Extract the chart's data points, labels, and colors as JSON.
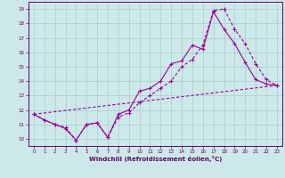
{
  "xlabel": "Windchill (Refroidissement éolien,°C)",
  "background_color": "#cce8e8",
  "grid_color": "#aacccc",
  "line_color": "#990099",
  "xlim": [
    -0.5,
    23.5
  ],
  "ylim": [
    9.5,
    19.5
  ],
  "xticks": [
    0,
    1,
    2,
    3,
    4,
    5,
    6,
    7,
    8,
    9,
    10,
    11,
    12,
    13,
    14,
    15,
    16,
    17,
    18,
    19,
    20,
    21,
    22,
    23
  ],
  "yticks": [
    10,
    11,
    12,
    13,
    14,
    15,
    16,
    17,
    18,
    19
  ],
  "series1_x": [
    0,
    1,
    2,
    3,
    4,
    5,
    6,
    7,
    8,
    9,
    10,
    11,
    12,
    13,
    14,
    15,
    16,
    17,
    18,
    19,
    20,
    21,
    22,
    23
  ],
  "series1_y": [
    11.7,
    11.3,
    11.0,
    10.7,
    9.9,
    11.0,
    11.1,
    10.1,
    11.7,
    12.0,
    13.3,
    13.5,
    14.0,
    15.2,
    15.4,
    16.5,
    16.2,
    18.8,
    17.6,
    16.6,
    15.3,
    14.1,
    13.8,
    13.7
  ],
  "series2_x": [
    0,
    1,
    2,
    3,
    4,
    5,
    6,
    7,
    8,
    9,
    10,
    11,
    12,
    13,
    14,
    15,
    16,
    17,
    18,
    19,
    20,
    21,
    22,
    23
  ],
  "series2_y": [
    11.7,
    11.3,
    11.0,
    10.8,
    9.9,
    11.0,
    11.1,
    10.1,
    11.5,
    11.8,
    12.5,
    13.0,
    13.5,
    14.0,
    15.0,
    15.5,
    16.5,
    18.9,
    19.0,
    17.6,
    16.6,
    15.2,
    14.1,
    13.7
  ],
  "series3_x": [
    0,
    23
  ],
  "series3_y": [
    11.7,
    13.7
  ]
}
